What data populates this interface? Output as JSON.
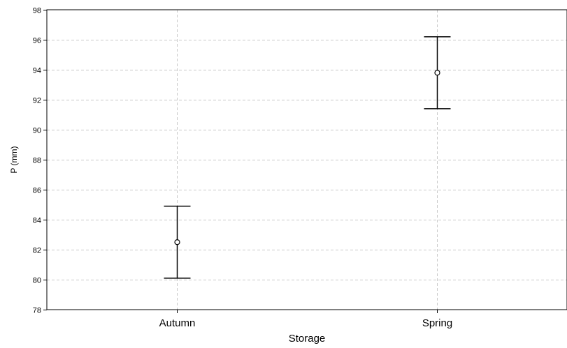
{
  "chart_data": {
    "type": "scatter",
    "subtype": "mean-with-error-bars",
    "title": "",
    "xlabel": "Storage",
    "ylabel": "P (mm)",
    "categories": [
      "Autumn",
      "Spring"
    ],
    "series": [
      {
        "values": [
          82.5,
          93.8
        ],
        "lower": [
          80.1,
          91.4
        ],
        "upper": [
          84.9,
          96.2
        ]
      }
    ],
    "ylim": [
      78,
      98
    ],
    "yticks": [
      78,
      80,
      82,
      84,
      86,
      88,
      90,
      92,
      94,
      96,
      98
    ],
    "grid": true,
    "legend": "none",
    "colors": {
      "axis": "#000000",
      "grid": "#c8c8c8",
      "series": "#000000"
    }
  }
}
